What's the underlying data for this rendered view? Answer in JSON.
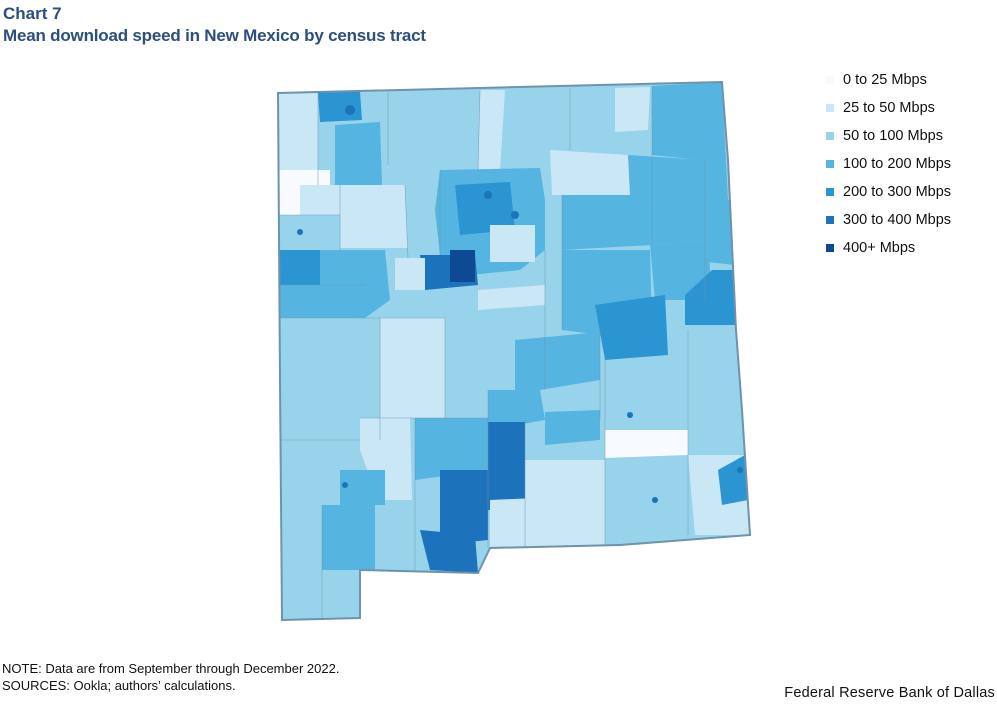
{
  "header": {
    "chart_label": "Chart 7",
    "title": "Mean download speed in New Mexico by census tract"
  },
  "legend": {
    "items": [
      {
        "label": "0 to 25 Mbps",
        "color": "#f7fbff"
      },
      {
        "label": "25 to 50 Mbps",
        "color": "#c9e7f5"
      },
      {
        "label": "50 to 100 Mbps",
        "color": "#98d3ec"
      },
      {
        "label": "100 to 200 Mbps",
        "color": "#55b5e0"
      },
      {
        "label": "200 to 300 Mbps",
        "color": "#2b95d1"
      },
      {
        "label": "300 to 400 Mbps",
        "color": "#1c73bb"
      },
      {
        "label": "400+ Mbps",
        "color": "#0d4a93"
      }
    ]
  },
  "map": {
    "region": "New Mexico",
    "border_color": "#6e93ab"
  },
  "notes": {
    "note": "NOTE: Data are from September through December 2022.",
    "sources": "SOURCES: Ookla; authors’ calculations."
  },
  "credit": "Federal Reserve Bank of Dallas"
}
